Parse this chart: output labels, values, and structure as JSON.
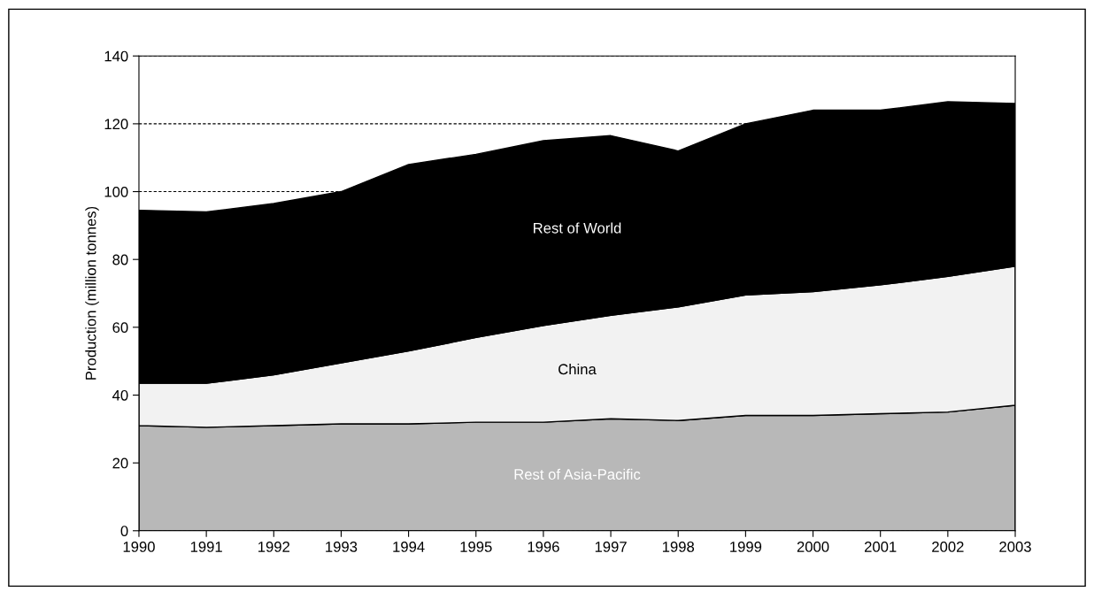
{
  "chart_data": {
    "type": "area",
    "stacked": true,
    "ylabel": "Production (million tonnes)",
    "x": [
      1990,
      1991,
      1992,
      1993,
      1994,
      1995,
      1996,
      1997,
      1998,
      1999,
      2000,
      2001,
      2002,
      2003
    ],
    "series": [
      {
        "name": "Rest of Asia-Pacific",
        "color": "#b8b8b8",
        "values": [
          31,
          30.5,
          31,
          31.5,
          31.5,
          32,
          32,
          33,
          32.5,
          34,
          34,
          34.5,
          35,
          37
        ]
      },
      {
        "name": "China",
        "color": "#f2f2f2",
        "values": [
          12.5,
          13,
          15,
          18,
          21.5,
          25,
          28.5,
          30.5,
          33.5,
          35.5,
          36.5,
          38,
          40,
          41
        ]
      },
      {
        "name": "Rest of World",
        "color": "#000000",
        "values": [
          51,
          50.5,
          50.5,
          50.5,
          55,
          54,
          54.5,
          53,
          46,
          50.5,
          53.5,
          51.5,
          51.5,
          48
        ]
      }
    ],
    "xlim": [
      1990,
      2003
    ],
    "xticks": [
      1990,
      1991,
      1992,
      1993,
      1994,
      1995,
      1996,
      1997,
      1998,
      1999,
      2000,
      2001,
      2002,
      2003
    ],
    "ylim": [
      0,
      140
    ],
    "yticks": [
      0,
      20,
      40,
      60,
      80,
      100,
      120,
      140
    ],
    "grid": "y",
    "legend": false
  }
}
